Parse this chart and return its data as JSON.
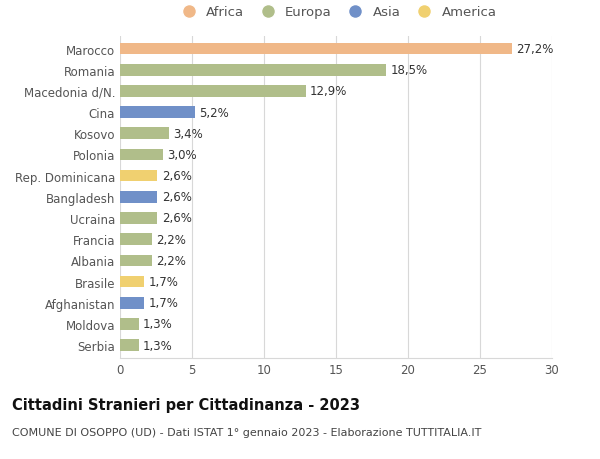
{
  "categories": [
    "Serbia",
    "Moldova",
    "Afghanistan",
    "Brasile",
    "Albania",
    "Francia",
    "Ucraina",
    "Bangladesh",
    "Rep. Dominicana",
    "Polonia",
    "Kosovo",
    "Cina",
    "Macedonia d/N.",
    "Romania",
    "Marocco"
  ],
  "values": [
    1.3,
    1.3,
    1.7,
    1.7,
    2.2,
    2.2,
    2.6,
    2.6,
    2.6,
    3.0,
    3.4,
    5.2,
    12.9,
    18.5,
    27.2
  ],
  "labels": [
    "1,3%",
    "1,3%",
    "1,7%",
    "1,7%",
    "2,2%",
    "2,2%",
    "2,6%",
    "2,6%",
    "2,6%",
    "3,0%",
    "3,4%",
    "5,2%",
    "12,9%",
    "18,5%",
    "27,2%"
  ],
  "colors": [
    "#b0be8a",
    "#b0be8a",
    "#7090c8",
    "#f0d070",
    "#b0be8a",
    "#b0be8a",
    "#b0be8a",
    "#7090c8",
    "#f0d070",
    "#b0be8a",
    "#b0be8a",
    "#7090c8",
    "#b0be8a",
    "#b0be8a",
    "#f0b888"
  ],
  "continent": [
    "Europa",
    "Europa",
    "Asia",
    "America",
    "Europa",
    "Europa",
    "Europa",
    "Asia",
    "America",
    "Europa",
    "Europa",
    "Asia",
    "Europa",
    "Europa",
    "Africa"
  ],
  "legend_labels": [
    "Africa",
    "Europa",
    "Asia",
    "America"
  ],
  "legend_colors": [
    "#f0b888",
    "#b0be8a",
    "#7090c8",
    "#f0d070"
  ],
  "title": "Cittadini Stranieri per Cittadinanza - 2023",
  "subtitle": "COMUNE DI OSOPPO (UD) - Dati ISTAT 1° gennaio 2023 - Elaborazione TUTTITALIA.IT",
  "xlim": [
    0,
    30
  ],
  "xticks": [
    0,
    5,
    10,
    15,
    20,
    25,
    30
  ],
  "background_color": "#ffffff",
  "grid_color": "#d8d8d8",
  "bar_height": 0.55,
  "title_fontsize": 10.5,
  "subtitle_fontsize": 8,
  "label_fontsize": 8.5,
  "tick_fontsize": 8.5,
  "legend_fontsize": 9.5
}
